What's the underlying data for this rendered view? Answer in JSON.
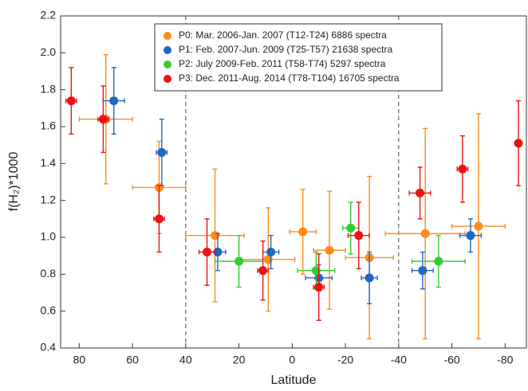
{
  "chart_data": {
    "type": "scatter",
    "x_label": "Latitude",
    "y_label": "f(H₂)*1000",
    "xlim": [
      87,
      -88
    ],
    "ylim": [
      0.4,
      2.2
    ],
    "xticks": [
      80,
      60,
      40,
      20,
      0,
      -20,
      -40,
      -60,
      -80
    ],
    "yticks": [
      0.4,
      0.6,
      0.8,
      {
        "value": 1,
        "label": "1.0"
      },
      1.2,
      1.4,
      1.6,
      1.8,
      {
        "value": 2,
        "label": "2.0"
      },
      2.2
    ],
    "vlines": [
      40,
      -40
    ],
    "legend": "upper center",
    "series": [
      {
        "name": "P0: Mar. 2006-Jan. 2007 (T12-T24) 6886 spectra",
        "color": "#ff8c1a",
        "x": [
          70,
          50,
          29,
          9,
          -4,
          -14,
          -29,
          -50,
          -70
        ],
        "values": [
          1.64,
          1.27,
          1.01,
          0.88,
          1.03,
          0.93,
          0.89,
          1.02,
          1.06
        ],
        "xerr": [
          10,
          10,
          11,
          10,
          5,
          6,
          9,
          15,
          10
        ],
        "yerr": [
          0.35,
          0.25,
          0.36,
          0.28,
          0.23,
          0.32,
          0.44,
          0.57,
          0.61
        ]
      },
      {
        "name": "P1: Feb. 2007-Jun. 2009 (T25-T57) 21638 spectra",
        "color": "#2066c4",
        "x": [
          67,
          49,
          28,
          8,
          -10,
          -29,
          -49,
          -67
        ],
        "values": [
          1.74,
          1.46,
          0.92,
          0.92,
          0.78,
          0.78,
          0.82,
          1.01
        ],
        "xerr": [
          4,
          2,
          3,
          3,
          5,
          3,
          4,
          4
        ],
        "yerr": [
          0.18,
          0.18,
          0.1,
          0.09,
          0.07,
          0.14,
          0.1,
          0.09
        ]
      },
      {
        "name": "P2: July 2009-Feb. 2011 (T58-T74) 5297 spectra",
        "color": "#33cc33",
        "x": [
          20,
          -9,
          -22,
          -55
        ],
        "values": [
          0.87,
          0.82,
          1.05,
          0.87
        ],
        "xerr": [
          9,
          7,
          3,
          10
        ],
        "yerr": [
          0.14,
          0.1,
          0.14,
          0.14
        ]
      },
      {
        "name": "P3: Dec. 2011-Aug. 2014 (T78-T104) 16705 spectra",
        "color": "#ee1111",
        "x": [
          83,
          71,
          50,
          32,
          11,
          -10,
          -25,
          -48,
          -64,
          -85
        ],
        "values": [
          1.74,
          1.64,
          1.1,
          0.92,
          0.82,
          0.73,
          1.01,
          1.24,
          1.37,
          1.51
        ],
        "xerr": [
          2,
          2,
          2,
          3,
          2,
          2,
          4,
          4,
          2,
          1
        ],
        "yerr": [
          0.18,
          0.18,
          0.18,
          0.18,
          0.16,
          0.18,
          0.18,
          0.14,
          0.18,
          0.23
        ]
      }
    ]
  }
}
